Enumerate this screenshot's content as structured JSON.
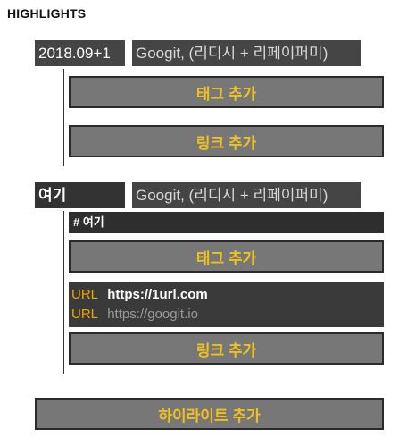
{
  "heading": "HIGHLIGHTS",
  "highlights": [
    {
      "name": "2018.09+1",
      "book": "Googit, (리디시 + 리페이퍼미)",
      "add_tag_label": "태그 추가",
      "add_link_label": "링크 추가"
    },
    {
      "name": "여기",
      "book": "Googit, (리디시 + 리페이퍼미)",
      "tag": "# 여기",
      "add_tag_label": "태그 추가",
      "links": [
        {
          "label": "URL",
          "url": "https://1url.com"
        },
        {
          "label": "URL",
          "url": "https://googit.io"
        }
      ],
      "add_link_label": "링크 추가"
    }
  ],
  "add_highlight_label": "하이라이트 추가",
  "colors": {
    "accent": "#f0c020",
    "url_label": "#f0a800",
    "header_bg": "#454545",
    "button_bg": "#777777"
  }
}
